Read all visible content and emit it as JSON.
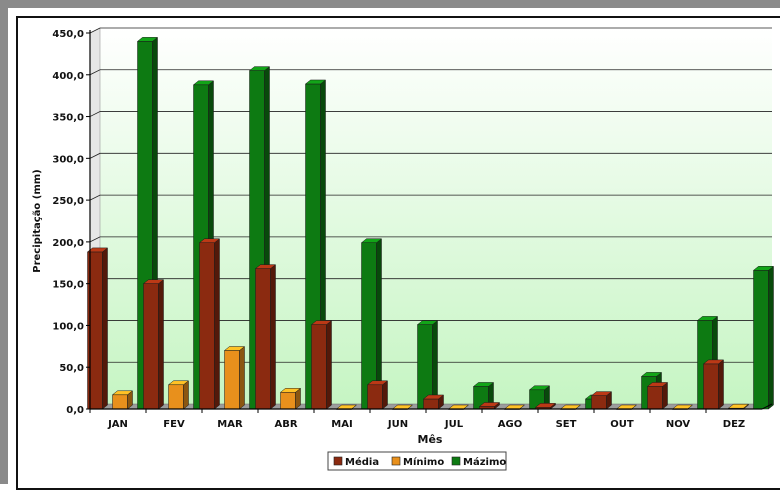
{
  "chart_data": {
    "type": "bar",
    "title": "",
    "xlabel": "Mês",
    "ylabel": "Precipitação (mm)",
    "ylim": [
      0,
      450
    ],
    "yticks": [
      "0,0",
      "50,0",
      "100,0",
      "150,0",
      "200,0",
      "250,0",
      "300,0",
      "350,0",
      "400,0",
      "450,0"
    ],
    "categories": [
      "JAN",
      "FEV",
      "MAR",
      "ABR",
      "MAI",
      "JUN",
      "JUL",
      "AGO",
      "SET",
      "OUT",
      "NOV",
      "DEZ"
    ],
    "series": [
      {
        "name": "Média",
        "color": "#8b2a10",
        "values": [
          188,
          150,
          199,
          168,
          101,
          29,
          12,
          3,
          2,
          16,
          27,
          54
        ]
      },
      {
        "name": "Mínimo",
        "color": "#e8901c",
        "values": [
          17,
          29,
          70,
          20,
          0,
          0,
          0,
          0,
          0,
          0,
          0,
          1
        ]
      },
      {
        "name": "Mázimo",
        "color": "#0d7a12",
        "values": [
          440,
          388,
          405,
          389,
          199,
          101,
          27,
          23,
          12,
          39,
          106,
          166
        ]
      }
    ],
    "grid": true,
    "legend": "bottom",
    "background_gradient": [
      "#ffffff",
      "#c6f5c3"
    ]
  }
}
